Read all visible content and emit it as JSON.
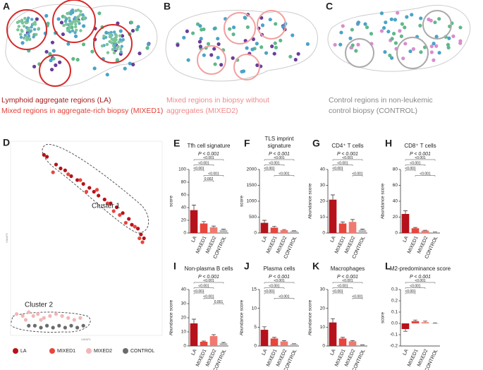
{
  "illustrations": [
    {
      "panel": "A",
      "caption": [
        "Lymphoid aggregate regions (LA)",
        "Mixed regions in aggregate-rich biopsy (MIXED1)"
      ]
    },
    {
      "panel": "B",
      "caption": [
        "Mixed regions in biopsy without",
        "aggregates (MIXED2)"
      ]
    },
    {
      "panel": "C",
      "caption": [
        "Control regions in non-leukemic",
        "control biopsy (CONTROL)"
      ]
    }
  ],
  "chart_data": [
    {
      "type": "scatter",
      "panel": "D",
      "xlabel": "UMAP1",
      "ylabel": "UMAP2",
      "xlim": [
        0,
        100
      ],
      "ylim": [
        0,
        100
      ],
      "annotations": [
        "Cluster 1",
        "Cluster 2"
      ],
      "series": [
        {
          "name": "LA",
          "color": "#b5121b",
          "x": [
            22,
            24,
            30,
            33,
            36,
            40,
            44,
            48,
            52,
            55,
            58,
            62,
            66,
            70,
            74,
            78,
            80,
            84,
            86,
            88
          ],
          "values": [
            93,
            92,
            88,
            86,
            85,
            82,
            80,
            78,
            76,
            74,
            72,
            70,
            68,
            66,
            63,
            60,
            57,
            55,
            52,
            50
          ]
        },
        {
          "name": "MIXED1",
          "color": "#e8453c",
          "x": [
            28,
            38,
            46,
            50,
            57,
            64,
            68,
            72,
            76,
            82,
            85,
            87
          ],
          "values": [
            84,
            83,
            80,
            74,
            75,
            68,
            64,
            62,
            58,
            56,
            50,
            48
          ]
        },
        {
          "name": "MIXED2",
          "color": "#f2b6b6",
          "x": [
            4,
            8,
            12,
            15,
            18,
            22,
            26,
            30,
            34,
            38,
            42,
            46,
            10,
            20
          ],
          "values": [
            11,
            10,
            12,
            10,
            11,
            9,
            10,
            11,
            10,
            9,
            8,
            9,
            8,
            8
          ]
        },
        {
          "name": "CONTROL",
          "color": "#6b6b6b",
          "x": [
            12,
            16,
            20,
            24,
            28,
            32,
            36,
            40,
            44,
            48
          ],
          "values": [
            5,
            5,
            4,
            5,
            4,
            5,
            4,
            5,
            4,
            5
          ]
        }
      ]
    },
    {
      "type": "bar",
      "panel": "E",
      "title": [
        "Tfh cell signature"
      ],
      "annotation": "P < 0.001",
      "ylabel": "score",
      "categories": [
        "LA",
        "MIXED1",
        "MIXED2",
        "CONTROL"
      ],
      "values": [
        36,
        15,
        9,
        5
      ],
      "errors": [
        8,
        3,
        2,
        1
      ],
      "colors": [
        "#b5121b",
        "#e8453c",
        "#f07a70",
        "#bbbbbb"
      ],
      "ylim": [
        0,
        100
      ],
      "yticks": [
        0,
        20,
        40,
        60,
        80,
        100
      ],
      "comparisons": [
        {
          "pair": [
            "LA",
            "CONTROL"
          ],
          "label": "<0.001"
        },
        {
          "pair": [
            "LA",
            "MIXED2"
          ],
          "label": "<0.001"
        },
        {
          "pair": [
            "LA",
            "MIXED1"
          ],
          "label": "<0.001"
        },
        {
          "pair": [
            "MIXED1",
            "CONTROL"
          ],
          "label": "<0.001"
        },
        {
          "pair": [
            "MIXED1",
            "MIXED2"
          ],
          "label": "0.002"
        }
      ]
    },
    {
      "type": "bar",
      "panel": "F",
      "title": [
        "TLS imprint",
        "signature"
      ],
      "annotation": "P < 0.001",
      "ylabel": "score",
      "categories": [
        "LA",
        "MIXED1",
        "MIXED2",
        "CONTROL"
      ],
      "values": [
        320,
        170,
        90,
        60
      ],
      "errors": [
        80,
        40,
        20,
        10
      ],
      "colors": [
        "#b5121b",
        "#e8453c",
        "#f07a70",
        "#bbbbbb"
      ],
      "ylim": [
        0,
        2000
      ],
      "yticks": [
        0,
        500,
        1000,
        1500,
        2000
      ],
      "comparisons": [
        {
          "pair": [
            "LA",
            "CONTROL"
          ],
          "label": "<0.001"
        },
        {
          "pair": [
            "LA",
            "MIXED2"
          ],
          "label": "<0.001"
        },
        {
          "pair": [
            "LA",
            "MIXED1"
          ],
          "label": "<0.001"
        },
        {
          "pair": [
            "MIXED1",
            "CONTROL"
          ],
          "label": "<0.001"
        }
      ]
    },
    {
      "type": "bar",
      "panel": "G",
      "title": [
        "CD4⁺ T cells"
      ],
      "annotation": "P < 0.001",
      "ylabel": "Abundance score",
      "categories": [
        "LA",
        "MIXED1",
        "MIXED2",
        "CONTROL"
      ],
      "values": [
        21,
        6,
        7,
        2
      ],
      "errors": [
        3,
        1,
        1.5,
        0.5
      ],
      "colors": [
        "#b5121b",
        "#e8453c",
        "#f07a70",
        "#bbbbbb"
      ],
      "ylim": [
        0,
        40
      ],
      "yticks": [
        0,
        10,
        20,
        30,
        40
      ],
      "comparisons": [
        {
          "pair": [
            "LA",
            "CONTROL"
          ],
          "label": "<0.001"
        },
        {
          "pair": [
            "LA",
            "MIXED2"
          ],
          "label": "<0.001"
        },
        {
          "pair": [
            "LA",
            "MIXED1"
          ],
          "label": "<0.001"
        },
        {
          "pair": [
            "MIXED2",
            "CONTROL"
          ],
          "label": "<0.001"
        }
      ]
    },
    {
      "type": "bar",
      "panel": "H",
      "title": [
        "CD8⁺ T cells"
      ],
      "annotation": "P < 0.001",
      "ylabel": "Abundance score",
      "categories": [
        "LA",
        "MIXED1",
        "MIXED2",
        "CONTROL"
      ],
      "values": [
        24,
        6,
        3,
        1
      ],
      "errors": [
        4,
        1,
        0.5,
        0.3
      ],
      "colors": [
        "#b5121b",
        "#e8453c",
        "#f07a70",
        "#bbbbbb"
      ],
      "ylim": [
        0,
        80
      ],
      "yticks": [
        0,
        20,
        40,
        60,
        80
      ],
      "comparisons": [
        {
          "pair": [
            "LA",
            "CONTROL"
          ],
          "label": "<0.001"
        },
        {
          "pair": [
            "LA",
            "MIXED2"
          ],
          "label": "<0.001"
        },
        {
          "pair": [
            "LA",
            "MIXED1"
          ],
          "label": "<0.001"
        },
        {
          "pair": [
            "MIXED1",
            "CONTROL"
          ],
          "label": "<0.001"
        }
      ]
    },
    {
      "type": "bar",
      "panel": "I",
      "title": [
        "Non-plasma B cells"
      ],
      "annotation": "P < 0.001",
      "ylabel": "Abundance score",
      "categories": [
        "LA",
        "MIXED1",
        "MIXED2",
        "CONTROL"
      ],
      "values": [
        16,
        3,
        7,
        2
      ],
      "errors": [
        3,
        0.5,
        1,
        0.5
      ],
      "colors": [
        "#b5121b",
        "#e8453c",
        "#f07a70",
        "#bbbbbb"
      ],
      "ylim": [
        0,
        40
      ],
      "yticks": [
        0,
        10,
        20,
        30,
        40
      ],
      "comparisons": [
        {
          "pair": [
            "LA",
            "CONTROL"
          ],
          "label": "<0.001"
        },
        {
          "pair": [
            "LA",
            "MIXED2"
          ],
          "label": "<0.001"
        },
        {
          "pair": [
            "LA",
            "MIXED1"
          ],
          "label": "<0.001"
        },
        {
          "pair": [
            "MIXED1",
            "MIXED2"
          ],
          "label": "<0.001"
        },
        {
          "pair": [
            "MIXED2",
            "CONTROL"
          ],
          "label": "0.001"
        }
      ]
    },
    {
      "type": "bar",
      "panel": "J",
      "title": [
        "Plasma cells"
      ],
      "annotation": "P < 0.001",
      "ylabel": "Abundance score",
      "categories": [
        "LA",
        "MIXED1",
        "MIXED2",
        "CONTROL"
      ],
      "values": [
        4.3,
        2,
        1.2,
        0.5
      ],
      "errors": [
        0.8,
        0.3,
        0.2,
        0.1
      ],
      "colors": [
        "#b5121b",
        "#e8453c",
        "#f07a70",
        "#bbbbbb"
      ],
      "ylim": [
        0,
        15
      ],
      "yticks": [
        0,
        5,
        10,
        15
      ],
      "comparisons": [
        {
          "pair": [
            "LA",
            "CONTROL"
          ],
          "label": "<0.001"
        },
        {
          "pair": [
            "LA",
            "MIXED2"
          ],
          "label": "<0.001"
        },
        {
          "pair": [
            "LA",
            "MIXED1"
          ],
          "label": "<0.001"
        },
        {
          "pair": [
            "MIXED1",
            "CONTROL"
          ],
          "label": "<0.001"
        }
      ]
    },
    {
      "type": "bar",
      "panel": "K",
      "title": [
        "Macrophages"
      ],
      "annotation": "P < 0.001",
      "ylabel": "Abundance score",
      "categories": [
        "LA",
        "MIXED1",
        "MIXED2",
        "CONTROL"
      ],
      "values": [
        12.5,
        4,
        2.5,
        0.5
      ],
      "errors": [
        2,
        0.6,
        0.4,
        0.1
      ],
      "colors": [
        "#b5121b",
        "#e8453c",
        "#f07a70",
        "#bbbbbb"
      ],
      "ylim": [
        0,
        30
      ],
      "yticks": [
        0,
        10,
        20,
        30
      ],
      "comparisons": [
        {
          "pair": [
            "LA",
            "CONTROL"
          ],
          "label": "<0.001"
        },
        {
          "pair": [
            "LA",
            "MIXED2"
          ],
          "label": "<0.001"
        },
        {
          "pair": [
            "LA",
            "MIXED1"
          ],
          "label": "<0.001"
        },
        {
          "pair": [
            "MIXED2",
            "CONTROL"
          ],
          "label": "<0.001"
        }
      ]
    },
    {
      "type": "bar",
      "panel": "L",
      "title": [
        "M2-predominance score"
      ],
      "annotation": "P < 0.001",
      "ylabel": "score",
      "categories": [
        "LA",
        "MIXED1",
        "MIXED2",
        "CONTROL"
      ],
      "values": [
        -0.05,
        0.02,
        0.01,
        0.0
      ],
      "errors": [
        0.02,
        0.01,
        0.01,
        0.005
      ],
      "colors": [
        "#b5121b",
        "#e8453c",
        "#f07a70",
        "#bbbbbb"
      ],
      "ylim": [
        -0.2,
        0.3
      ],
      "yticks": [
        -0.2,
        -0.1,
        {
          "value": 0,
          "label": "0.0"
        },
        0.1,
        0.2,
        0.3
      ],
      "comparisons": [
        {
          "pair": [
            "LA",
            "CONTROL"
          ],
          "label": "<0.001"
        },
        {
          "pair": [
            "LA",
            "MIXED2"
          ],
          "label": "<0.001"
        },
        {
          "pair": [
            "LA",
            "MIXED1"
          ],
          "label": "<0.001"
        }
      ]
    }
  ]
}
